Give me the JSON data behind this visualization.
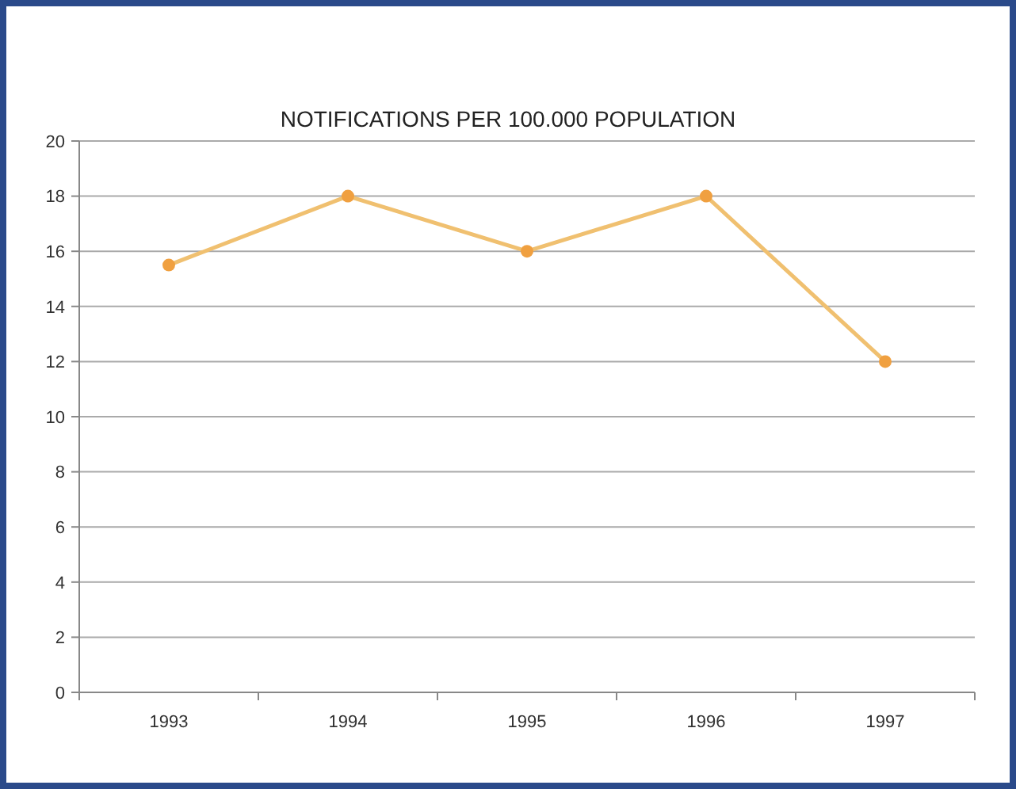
{
  "chart_data": {
    "type": "line",
    "title": "NOTIFICATIONS PER 100.000 POPULATION",
    "categories": [
      "1993",
      "1994",
      "1995",
      "1996",
      "1997"
    ],
    "series": [
      {
        "color": "#f0c070",
        "values": [
          15.5,
          18,
          16,
          18,
          12
        ]
      }
    ],
    "ylim": [
      0,
      20
    ],
    "yticks": [
      0,
      2,
      4,
      6,
      8,
      10,
      12,
      14,
      16,
      18,
      20
    ],
    "grid": "y",
    "marker": "circle",
    "line_style": "solid"
  }
}
